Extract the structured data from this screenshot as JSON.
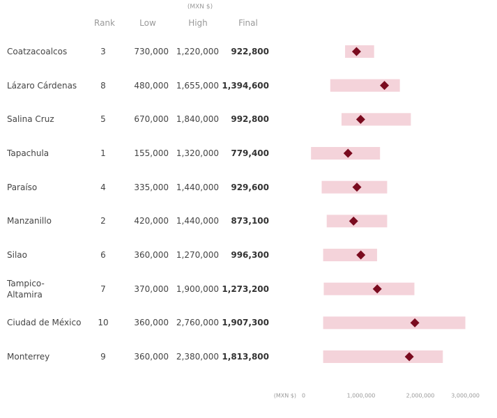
{
  "chart_data": {
    "type": "range",
    "unit_label": "(MXN $)",
    "rank_label": "Rank",
    "categories": [
      "Coatzacoalcos",
      "Lázaro Cárdenas",
      "Salina Cruz",
      "Tapachula",
      "Paraíso",
      "Manzanillo",
      "Silao",
      "Tampico-Altamira",
      "Ciudad de México",
      "Monterrey"
    ],
    "ranks": [
      3,
      8,
      5,
      1,
      4,
      2,
      6,
      7,
      10,
      9
    ],
    "series": [
      {
        "name": "Low",
        "color": "#f4d3da",
        "values": [
          730000,
          480000,
          670000,
          155000,
          335000,
          420000,
          360000,
          370000,
          360000,
          360000
        ],
        "value_labels": [
          "730,000",
          "480,000",
          "670,000",
          "155,000",
          "335,000",
          "420,000",
          "360,000",
          "370,000",
          "360,000",
          "360,000"
        ]
      },
      {
        "name": "High",
        "color": "#f4d3da",
        "values": [
          1220000,
          1655000,
          1840000,
          1320000,
          1440000,
          1440000,
          1270000,
          1900000,
          2760000,
          2380000
        ],
        "value_labels": [
          "1,220,000",
          "1,655,000",
          "1,840,000",
          "1,320,000",
          "1,440,000",
          "1,440,000",
          "1,270,000",
          "1,900,000",
          "2,760,000",
          "2,380,000"
        ]
      },
      {
        "name": "Final",
        "color": "#7a0b1f",
        "values": [
          922800,
          1394600,
          992800,
          779400,
          929600,
          873100,
          996300,
          1273200,
          1907300,
          1813800
        ],
        "value_labels": [
          "922,800",
          "1,394,600",
          "992,800",
          "779,400",
          "929,600",
          "873,100",
          "996,300",
          "1,273,200",
          "1,907,300",
          "1,813,800"
        ]
      }
    ],
    "xlim": [
      0,
      3000000
    ],
    "xticks": [
      0,
      {
        "value": 1000000,
        "label": "1,000,000"
      },
      {
        "value": 2000000,
        "label": "2,000,000"
      },
      {
        "value": 3000000,
        "label": "3,000,000"
      }
    ]
  }
}
